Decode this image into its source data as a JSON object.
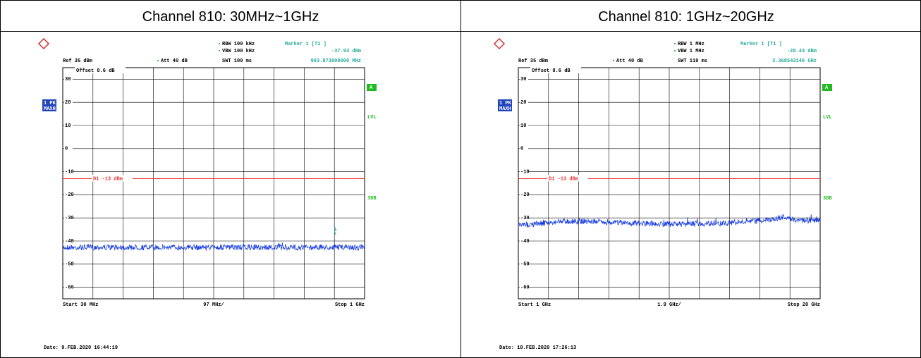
{
  "panels": [
    {
      "header": "Channel 810: 30MHz~1GHz",
      "rbw": "RBW 100 kHz",
      "vbw": "VBW 100 kHz",
      "swt": "SWT 100 ms",
      "marker": "Marker 1 [T1 ]",
      "marker_level": "-37.93 dBm",
      "marker_freq": "903.873000000 MHz",
      "ref": "Ref 35 dBm",
      "att": "Att 40 dB",
      "offset": "Offset 8.6 dB",
      "trace_label": [
        "1 PK",
        "MAXH"
      ],
      "side_labels": [
        "A",
        "LVL",
        "3DB"
      ],
      "ylim": [
        -65,
        35
      ],
      "yticks": [
        30,
        20,
        10,
        0,
        -10,
        -20,
        -30,
        -40,
        -50,
        -60
      ],
      "d1_line": {
        "value": -13,
        "label": "D1 -13 dBm"
      },
      "marker_num": "1",
      "start": "Start 30 MHz",
      "span": "97 MHz/",
      "stop": "Stop 1 GHz",
      "date": "Date: 9.FEB.2020 16:44:19"
    },
    {
      "header": "Channel 810: 1GHz~20GHz",
      "rbw": "RBW 1 MHz",
      "vbw": "VBW 1 MHz",
      "swt": "SWT 110 ms",
      "marker": "Marker 1 [T1 ]",
      "marker_level": "-28.44 dBm",
      "marker_freq": "3.368543146 GHz",
      "ref": "Ref 35 dBm",
      "att": "Att 40 dB",
      "offset": "Offset 8.6 dB",
      "trace_label": [
        "1 PK",
        "MAXH"
      ],
      "side_labels": [
        "A",
        "LVL",
        "3DB"
      ],
      "ylim": [
        -65,
        35
      ],
      "yticks": [
        30,
        20,
        10,
        0,
        -10,
        -20,
        -30,
        -40,
        -50,
        -60
      ],
      "d1_line": {
        "value": -13,
        "label": "D1 -13 dBm"
      },
      "marker_num": "1",
      "start": "Start 1 GHz",
      "span": "1.9 GHz/",
      "stop": "Stop 20 GHz",
      "date": "Date: 18.FEB.2020 17:26:13"
    }
  ]
}
